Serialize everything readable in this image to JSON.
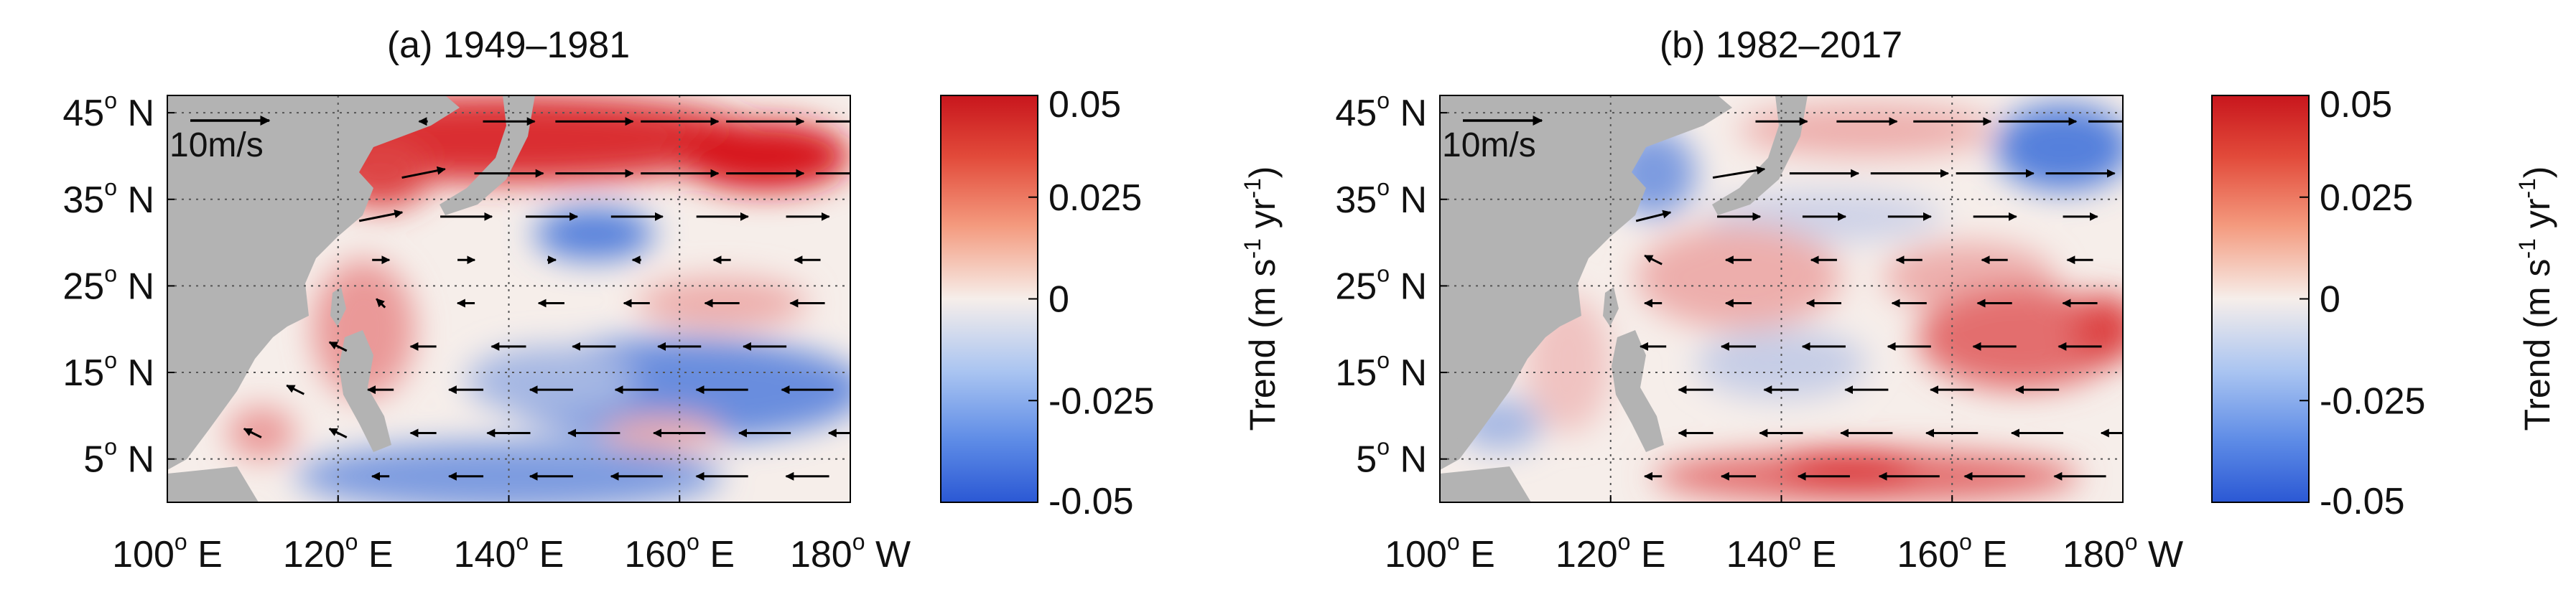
{
  "chart_data": [
    {
      "type": "heatmap",
      "panel": "a",
      "title": "(a) 1949–1981",
      "x_ticks": [
        {
          "value": 100,
          "deg": "100",
          "hemi": "E"
        },
        {
          "value": 120,
          "deg": "120",
          "hemi": "E"
        },
        {
          "value": 140,
          "deg": "140",
          "hemi": "E"
        },
        {
          "value": 160,
          "deg": "160",
          "hemi": "E"
        },
        {
          "value": 180,
          "deg": "180",
          "hemi": "W"
        }
      ],
      "y_ticks": [
        {
          "value": 5,
          "deg": "5",
          "hemi": "N"
        },
        {
          "value": 15,
          "deg": "15",
          "hemi": "N"
        },
        {
          "value": 25,
          "deg": "25",
          "hemi": "N"
        },
        {
          "value": 35,
          "deg": "35",
          "hemi": "N"
        },
        {
          "value": 45,
          "deg": "45",
          "hemi": "N"
        }
      ],
      "xlim": [
        100,
        180
      ],
      "ylim": [
        0,
        47
      ],
      "grid": true,
      "vector_reference": "10m/s",
      "colorbar": {
        "ticks": [
          {
            "value": 0.05,
            "label": "0.05"
          },
          {
            "value": 0.025,
            "label": "0.025"
          },
          {
            "value": 0,
            "label": "0"
          },
          {
            "value": -0.025,
            "label": "-0.025"
          },
          {
            "value": -0.05,
            "label": "-0.05"
          }
        ],
        "range": [
          -0.05,
          0.05
        ],
        "label": ""
      },
      "trend_blobs": [
        {
          "lon": 140,
          "lat": 42,
          "rx": 30,
          "ry": 5,
          "value": 0.045
        },
        {
          "lon": 170,
          "lat": 40,
          "rx": 10,
          "ry": 4,
          "value": 0.05
        },
        {
          "lon": 125,
          "lat": 38,
          "rx": 6,
          "ry": 4,
          "value": 0.04
        },
        {
          "lon": 150,
          "lat": 31,
          "rx": 7,
          "ry": 3,
          "value": -0.04
        },
        {
          "lon": 165,
          "lat": 23,
          "rx": 10,
          "ry": 3,
          "value": 0.015
        },
        {
          "lon": 123,
          "lat": 20,
          "rx": 6,
          "ry": 8,
          "value": 0.02
        },
        {
          "lon": 160,
          "lat": 13,
          "rx": 22,
          "ry": 6,
          "value": -0.035
        },
        {
          "lon": 145,
          "lat": 14,
          "rx": 10,
          "ry": 4,
          "value": -0.02
        },
        {
          "lon": 158,
          "lat": 8,
          "rx": 7,
          "ry": 2,
          "value": 0.015
        },
        {
          "lon": 140,
          "lat": 3,
          "rx": 25,
          "ry": 4,
          "value": -0.03
        },
        {
          "lon": 111,
          "lat": 8,
          "rx": 4,
          "ry": 3,
          "value": 0.02
        }
      ],
      "wind_trend_vectors": [
        {
          "lon": 130,
          "lat": 44,
          "u": -1,
          "v": 0
        },
        {
          "lon": 140,
          "lat": 44,
          "u": 6,
          "v": 0
        },
        {
          "lon": 150,
          "lat": 44,
          "u": 9,
          "v": 0
        },
        {
          "lon": 160,
          "lat": 44,
          "u": 9,
          "v": 0
        },
        {
          "lon": 170,
          "lat": 44,
          "u": 9,
          "v": 0
        },
        {
          "lon": 180,
          "lat": 44,
          "u": 8,
          "v": 0
        },
        {
          "lon": 130,
          "lat": 38,
          "u": 5,
          "v": 1
        },
        {
          "lon": 140,
          "lat": 38,
          "u": 8,
          "v": 0
        },
        {
          "lon": 150,
          "lat": 38,
          "u": 9,
          "v": 0
        },
        {
          "lon": 160,
          "lat": 38,
          "u": 9,
          "v": 0
        },
        {
          "lon": 170,
          "lat": 38,
          "u": 9,
          "v": 0
        },
        {
          "lon": 180,
          "lat": 38,
          "u": 8,
          "v": 0
        },
        {
          "lon": 125,
          "lat": 33,
          "u": 5,
          "v": 1
        },
        {
          "lon": 135,
          "lat": 33,
          "u": 6,
          "v": 0
        },
        {
          "lon": 145,
          "lat": 33,
          "u": 6,
          "v": 0
        },
        {
          "lon": 155,
          "lat": 33,
          "u": 6,
          "v": 0
        },
        {
          "lon": 165,
          "lat": 33,
          "u": 6,
          "v": 0
        },
        {
          "lon": 175,
          "lat": 33,
          "u": 5,
          "v": 0
        },
        {
          "lon": 125,
          "lat": 28,
          "u": 2,
          "v": 0
        },
        {
          "lon": 135,
          "lat": 28,
          "u": 2,
          "v": 0
        },
        {
          "lon": 145,
          "lat": 28,
          "u": 1,
          "v": 0
        },
        {
          "lon": 155,
          "lat": 28,
          "u": -1,
          "v": 0
        },
        {
          "lon": 165,
          "lat": 28,
          "u": -2,
          "v": 0
        },
        {
          "lon": 175,
          "lat": 28,
          "u": -3,
          "v": 0
        },
        {
          "lon": 125,
          "lat": 23,
          "u": -1,
          "v": 1
        },
        {
          "lon": 135,
          "lat": 23,
          "u": -2,
          "v": 0
        },
        {
          "lon": 145,
          "lat": 23,
          "u": -3,
          "v": 0
        },
        {
          "lon": 155,
          "lat": 23,
          "u": -3,
          "v": 0
        },
        {
          "lon": 165,
          "lat": 23,
          "u": -4,
          "v": 0
        },
        {
          "lon": 175,
          "lat": 23,
          "u": -4,
          "v": 0
        },
        {
          "lon": 120,
          "lat": 18,
          "u": -2,
          "v": 1
        },
        {
          "lon": 130,
          "lat": 18,
          "u": -3,
          "v": 0
        },
        {
          "lon": 140,
          "lat": 18,
          "u": -4,
          "v": 0
        },
        {
          "lon": 150,
          "lat": 18,
          "u": -5,
          "v": 0
        },
        {
          "lon": 160,
          "lat": 18,
          "u": -5,
          "v": 0
        },
        {
          "lon": 170,
          "lat": 18,
          "u": -5,
          "v": 0
        },
        {
          "lon": 115,
          "lat": 13,
          "u": -2,
          "v": 1
        },
        {
          "lon": 125,
          "lat": 13,
          "u": -3,
          "v": 0
        },
        {
          "lon": 135,
          "lat": 13,
          "u": -4,
          "v": 0
        },
        {
          "lon": 145,
          "lat": 13,
          "u": -5,
          "v": 0
        },
        {
          "lon": 155,
          "lat": 13,
          "u": -5,
          "v": 0
        },
        {
          "lon": 165,
          "lat": 13,
          "u": -6,
          "v": 0
        },
        {
          "lon": 175,
          "lat": 13,
          "u": -6,
          "v": 0
        },
        {
          "lon": 110,
          "lat": 8,
          "u": -2,
          "v": 1
        },
        {
          "lon": 120,
          "lat": 8,
          "u": -2,
          "v": 1
        },
        {
          "lon": 130,
          "lat": 8,
          "u": -3,
          "v": 0
        },
        {
          "lon": 140,
          "lat": 8,
          "u": -5,
          "v": 0
        },
        {
          "lon": 150,
          "lat": 8,
          "u": -6,
          "v": 0
        },
        {
          "lon": 160,
          "lat": 8,
          "u": -6,
          "v": 0
        },
        {
          "lon": 170,
          "lat": 8,
          "u": -6,
          "v": 0
        },
        {
          "lon": 180,
          "lat": 8,
          "u": -5,
          "v": 0
        },
        {
          "lon": 125,
          "lat": 3,
          "u": -2,
          "v": 0
        },
        {
          "lon": 135,
          "lat": 3,
          "u": -4,
          "v": 0
        },
        {
          "lon": 145,
          "lat": 3,
          "u": -5,
          "v": 0
        },
        {
          "lon": 155,
          "lat": 3,
          "u": -6,
          "v": 0
        },
        {
          "lon": 165,
          "lat": 3,
          "u": -6,
          "v": 0
        },
        {
          "lon": 175,
          "lat": 3,
          "u": -5,
          "v": 0
        }
      ]
    },
    {
      "type": "heatmap",
      "panel": "b",
      "title": "(b) 1982–2017",
      "x_ticks": [
        {
          "value": 100,
          "deg": "100",
          "hemi": "E"
        },
        {
          "value": 120,
          "deg": "120",
          "hemi": "E"
        },
        {
          "value": 140,
          "deg": "140",
          "hemi": "E"
        },
        {
          "value": 160,
          "deg": "160",
          "hemi": "E"
        },
        {
          "value": 180,
          "deg": "180",
          "hemi": "W"
        }
      ],
      "y_ticks": [
        {
          "value": 5,
          "deg": "5",
          "hemi": "N"
        },
        {
          "value": 15,
          "deg": "15",
          "hemi": "N"
        },
        {
          "value": 25,
          "deg": "25",
          "hemi": "N"
        },
        {
          "value": 35,
          "deg": "35",
          "hemi": "N"
        },
        {
          "value": 45,
          "deg": "45",
          "hemi": "N"
        }
      ],
      "xlim": [
        100,
        180
      ],
      "ylim": [
        0,
        47
      ],
      "grid": true,
      "vector_reference": "10m/s",
      "ylabel_left": "Trend (m s-1 yr-1)",
      "colorbar": {
        "ticks": [
          {
            "value": 0.05,
            "label": "0.05"
          },
          {
            "value": 0.025,
            "label": "0.025"
          },
          {
            "value": 0,
            "label": "0"
          },
          {
            "value": -0.025,
            "label": "-0.025"
          },
          {
            "value": -0.05,
            "label": "-0.05"
          }
        ],
        "range": [
          -0.05,
          0.05
        ],
        "label": "Trend (m s-1 yr-1)"
      },
      "trend_blobs": [
        {
          "lon": 150,
          "lat": 43,
          "rx": 15,
          "ry": 3,
          "value": 0.015
        },
        {
          "lon": 173,
          "lat": 41,
          "rx": 8,
          "ry": 5,
          "value": -0.04
        },
        {
          "lon": 125,
          "lat": 38,
          "rx": 5,
          "ry": 5,
          "value": -0.03
        },
        {
          "lon": 145,
          "lat": 33,
          "rx": 14,
          "ry": 3,
          "value": -0.01
        },
        {
          "lon": 135,
          "lat": 26,
          "rx": 12,
          "ry": 6,
          "value": 0.015
        },
        {
          "lon": 162,
          "lat": 26,
          "rx": 10,
          "ry": 4,
          "value": 0.015
        },
        {
          "lon": 168,
          "lat": 19,
          "rx": 12,
          "ry": 6,
          "value": 0.03
        },
        {
          "lon": 178,
          "lat": 20,
          "rx": 4,
          "ry": 4,
          "value": 0.04
        },
        {
          "lon": 140,
          "lat": 16,
          "rx": 10,
          "ry": 4,
          "value": -0.012
        },
        {
          "lon": 150,
          "lat": 3,
          "rx": 25,
          "ry": 3,
          "value": 0.03
        },
        {
          "lon": 148,
          "lat": 4,
          "rx": 8,
          "ry": 2,
          "value": 0.045
        },
        {
          "lon": 107,
          "lat": 9,
          "rx": 5,
          "ry": 3,
          "value": -0.02
        },
        {
          "lon": 115,
          "lat": 16,
          "rx": 5,
          "ry": 8,
          "value": 0.01
        }
      ],
      "wind_trend_vectors": [
        {
          "lon": 140,
          "lat": 44,
          "u": 6,
          "v": 0
        },
        {
          "lon": 150,
          "lat": 44,
          "u": 7,
          "v": 0
        },
        {
          "lon": 160,
          "lat": 44,
          "u": 9,
          "v": 0
        },
        {
          "lon": 170,
          "lat": 44,
          "u": 9,
          "v": 0
        },
        {
          "lon": 180,
          "lat": 44,
          "u": 8,
          "v": 0
        },
        {
          "lon": 135,
          "lat": 38,
          "u": 6,
          "v": 1
        },
        {
          "lon": 145,
          "lat": 38,
          "u": 8,
          "v": 0
        },
        {
          "lon": 155,
          "lat": 38,
          "u": 9,
          "v": 0
        },
        {
          "lon": 165,
          "lat": 38,
          "u": 9,
          "v": 0
        },
        {
          "lon": 175,
          "lat": 38,
          "u": 8,
          "v": 0
        },
        {
          "lon": 125,
          "lat": 33,
          "u": 4,
          "v": 1
        },
        {
          "lon": 135,
          "lat": 33,
          "u": 5,
          "v": 0
        },
        {
          "lon": 145,
          "lat": 33,
          "u": 5,
          "v": 0
        },
        {
          "lon": 155,
          "lat": 33,
          "u": 5,
          "v": 0
        },
        {
          "lon": 165,
          "lat": 33,
          "u": 5,
          "v": 0
        },
        {
          "lon": 175,
          "lat": 33,
          "u": 4,
          "v": 0
        },
        {
          "lon": 125,
          "lat": 28,
          "u": -2,
          "v": 1
        },
        {
          "lon": 135,
          "lat": 28,
          "u": -3,
          "v": 0
        },
        {
          "lon": 145,
          "lat": 28,
          "u": -3,
          "v": 0
        },
        {
          "lon": 155,
          "lat": 28,
          "u": -3,
          "v": 0
        },
        {
          "lon": 165,
          "lat": 28,
          "u": -3,
          "v": 0
        },
        {
          "lon": 175,
          "lat": 28,
          "u": -3,
          "v": 0
        },
        {
          "lon": 125,
          "lat": 23,
          "u": -2,
          "v": 0
        },
        {
          "lon": 135,
          "lat": 23,
          "u": -3,
          "v": 0
        },
        {
          "lon": 145,
          "lat": 23,
          "u": -4,
          "v": 0
        },
        {
          "lon": 155,
          "lat": 23,
          "u": -4,
          "v": 0
        },
        {
          "lon": 165,
          "lat": 23,
          "u": -4,
          "v": 0
        },
        {
          "lon": 175,
          "lat": 23,
          "u": -4,
          "v": 0
        },
        {
          "lon": 125,
          "lat": 18,
          "u": -3,
          "v": 0
        },
        {
          "lon": 135,
          "lat": 18,
          "u": -4,
          "v": 0
        },
        {
          "lon": 145,
          "lat": 18,
          "u": -5,
          "v": 0
        },
        {
          "lon": 155,
          "lat": 18,
          "u": -5,
          "v": 0
        },
        {
          "lon": 165,
          "lat": 18,
          "u": -5,
          "v": 0
        },
        {
          "lon": 175,
          "lat": 18,
          "u": -5,
          "v": 0
        },
        {
          "lon": 130,
          "lat": 13,
          "u": -4,
          "v": 0
        },
        {
          "lon": 140,
          "lat": 13,
          "u": -4,
          "v": 0
        },
        {
          "lon": 150,
          "lat": 13,
          "u": -5,
          "v": 0
        },
        {
          "lon": 160,
          "lat": 13,
          "u": -5,
          "v": 0
        },
        {
          "lon": 170,
          "lat": 13,
          "u": -5,
          "v": 0
        },
        {
          "lon": 130,
          "lat": 8,
          "u": -4,
          "v": 0
        },
        {
          "lon": 140,
          "lat": 8,
          "u": -5,
          "v": 0
        },
        {
          "lon": 150,
          "lat": 8,
          "u": -6,
          "v": 0
        },
        {
          "lon": 160,
          "lat": 8,
          "u": -6,
          "v": 0
        },
        {
          "lon": 170,
          "lat": 8,
          "u": -6,
          "v": 0
        },
        {
          "lon": 180,
          "lat": 8,
          "u": -5,
          "v": 0
        },
        {
          "lon": 125,
          "lat": 3,
          "u": -2,
          "v": 0
        },
        {
          "lon": 135,
          "lat": 3,
          "u": -4,
          "v": 0
        },
        {
          "lon": 145,
          "lat": 3,
          "u": -6,
          "v": 0
        },
        {
          "lon": 155,
          "lat": 3,
          "u": -7,
          "v": 0
        },
        {
          "lon": 165,
          "lat": 3,
          "u": -7,
          "v": 0
        },
        {
          "lon": 175,
          "lat": 3,
          "u": -6,
          "v": 0
        }
      ]
    }
  ],
  "colors": {
    "land": "#b3b3b3",
    "neutral": "#f6eeea",
    "positive": "#d7191c",
    "negative": "#2c64d9",
    "grid": "#555555",
    "vector": "#000000"
  }
}
